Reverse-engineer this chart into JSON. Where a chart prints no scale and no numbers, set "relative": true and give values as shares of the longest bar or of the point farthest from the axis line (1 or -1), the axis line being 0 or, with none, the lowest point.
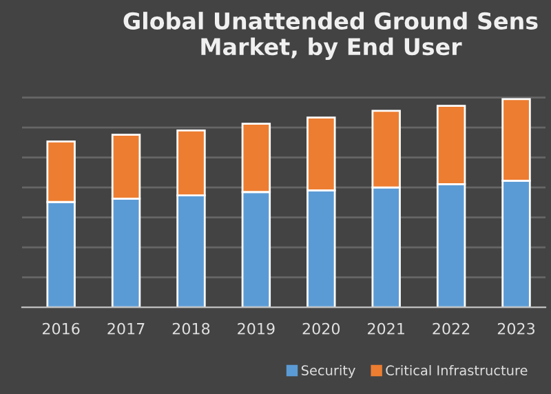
{
  "chart_data": {
    "type": "bar",
    "title": "Global Unattended Ground Sens\nMarket, by End User",
    "categories": [
      "2016",
      "2017",
      "2018",
      "2019",
      "2020",
      "2021",
      "2022",
      "2023"
    ],
    "stacked": true,
    "relative": true,
    "grid": "y",
    "legend": "bottom right",
    "series": [
      {
        "name": "Security",
        "color": "#5b9bd5",
        "values": [
          0.506,
          0.522,
          0.538,
          0.554,
          0.562,
          0.576,
          0.592,
          0.608
        ]
      },
      {
        "name": "Critical Infrastructure",
        "color": "#ed7d31",
        "values": [
          0.291,
          0.307,
          0.312,
          0.328,
          0.35,
          0.368,
          0.376,
          0.392
        ]
      }
    ]
  }
}
